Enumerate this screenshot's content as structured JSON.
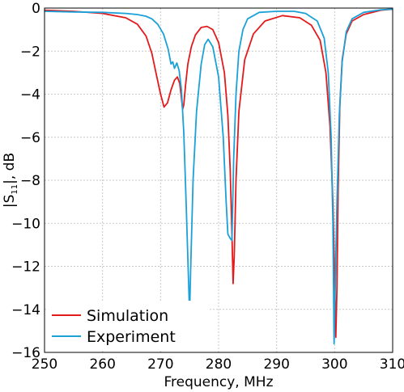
{
  "chart_data": {
    "type": "line",
    "xlabel": "Frequency, MHz",
    "ylabel": "|S",
    "ylabel_sub": "11",
    "ylabel_suffix": "|, dB",
    "xlim": [
      250,
      310
    ],
    "ylim": [
      -16,
      0
    ],
    "xticks": [
      250,
      260,
      270,
      280,
      290,
      300,
      310
    ],
    "yticks": [
      0,
      -2,
      -4,
      -6,
      -8,
      -10,
      -12,
      -14,
      -16
    ],
    "xtick_labels": [
      "250",
      "260",
      "270",
      "280",
      "290",
      "300",
      "310"
    ],
    "ytick_labels": [
      "0",
      "−2",
      "−4",
      "−6",
      "−8",
      "−10",
      "−12",
      "−14",
      "−16"
    ],
    "grid": true,
    "legend_position": "bottom-left",
    "series": [
      {
        "name": "Simulation",
        "color": "#e31a1c",
        "x": [
          250,
          255,
          260,
          264,
          266,
          267.5,
          268.5,
          269.2,
          270,
          270.6,
          271.2,
          271.8,
          272.4,
          272.9,
          273.3,
          273.6,
          273.8,
          274.0,
          274.3,
          274.7,
          275.3,
          276,
          277,
          278,
          279,
          280,
          281,
          281.6,
          282.0,
          282.3,
          282.5,
          282.7,
          283.0,
          283.5,
          284.5,
          286,
          288,
          291,
          294,
          296,
          297.5,
          298.5,
          299.2,
          299.7,
          300.0,
          300.2,
          300.4,
          300.6,
          300.9,
          301.3,
          302,
          303,
          305,
          308,
          310
        ],
        "y": [
          -0.1,
          -0.15,
          -0.25,
          -0.45,
          -0.75,
          -1.3,
          -2.1,
          -3.0,
          -4.0,
          -4.6,
          -4.4,
          -3.8,
          -3.35,
          -3.2,
          -3.5,
          -4.2,
          -4.7,
          -4.5,
          -3.6,
          -2.6,
          -1.8,
          -1.25,
          -0.9,
          -0.85,
          -1.0,
          -1.6,
          -3.0,
          -5.0,
          -7.5,
          -10.5,
          -12.8,
          -11.5,
          -8.0,
          -4.8,
          -2.4,
          -1.2,
          -0.6,
          -0.35,
          -0.45,
          -0.8,
          -1.5,
          -3.0,
          -5.5,
          -9.0,
          -12.5,
          -15.3,
          -13.0,
          -8.5,
          -4.5,
          -2.4,
          -1.2,
          -0.6,
          -0.3,
          -0.1,
          -0.05
        ]
      },
      {
        "name": "Experiment",
        "color": "#1ba1d8",
        "x": [
          250,
          255,
          260,
          264,
          266,
          267.5,
          268.5,
          269.5,
          270.5,
          271.3,
          271.8,
          272.1,
          272.4,
          272.8,
          273.2,
          273.6,
          274.0,
          274.4,
          274.8,
          275.0,
          275.2,
          275.6,
          276.2,
          277,
          277.6,
          278.2,
          279,
          280,
          280.8,
          281.3,
          281.6,
          282.0,
          282.3,
          282.6,
          283.0,
          283.5,
          284.2,
          285,
          287,
          290,
          293,
          295,
          297,
          298.2,
          298.9,
          299.4,
          299.7,
          299.9,
          300.1,
          300.4,
          300.8,
          301.3,
          302,
          303,
          305,
          308,
          310
        ],
        "y": [
          -0.15,
          -0.18,
          -0.2,
          -0.25,
          -0.3,
          -0.38,
          -0.5,
          -0.75,
          -1.2,
          -1.9,
          -2.6,
          -2.5,
          -2.8,
          -2.55,
          -2.9,
          -3.8,
          -5.8,
          -9.0,
          -12.5,
          -14.2,
          -12.0,
          -8.0,
          -4.8,
          -2.6,
          -1.7,
          -1.45,
          -1.8,
          -3.2,
          -6.0,
          -9.0,
          -10.5,
          -10.7,
          -10.8,
          -7.0,
          -4.0,
          -2.0,
          -1.0,
          -0.5,
          -0.2,
          -0.15,
          -0.15,
          -0.25,
          -0.6,
          -1.4,
          -3.0,
          -6.0,
          -10.0,
          -15.6,
          -13.0,
          -9.0,
          -5.0,
          -2.5,
          -1.1,
          -0.5,
          -0.2,
          -0.08,
          -0.05
        ]
      }
    ]
  }
}
